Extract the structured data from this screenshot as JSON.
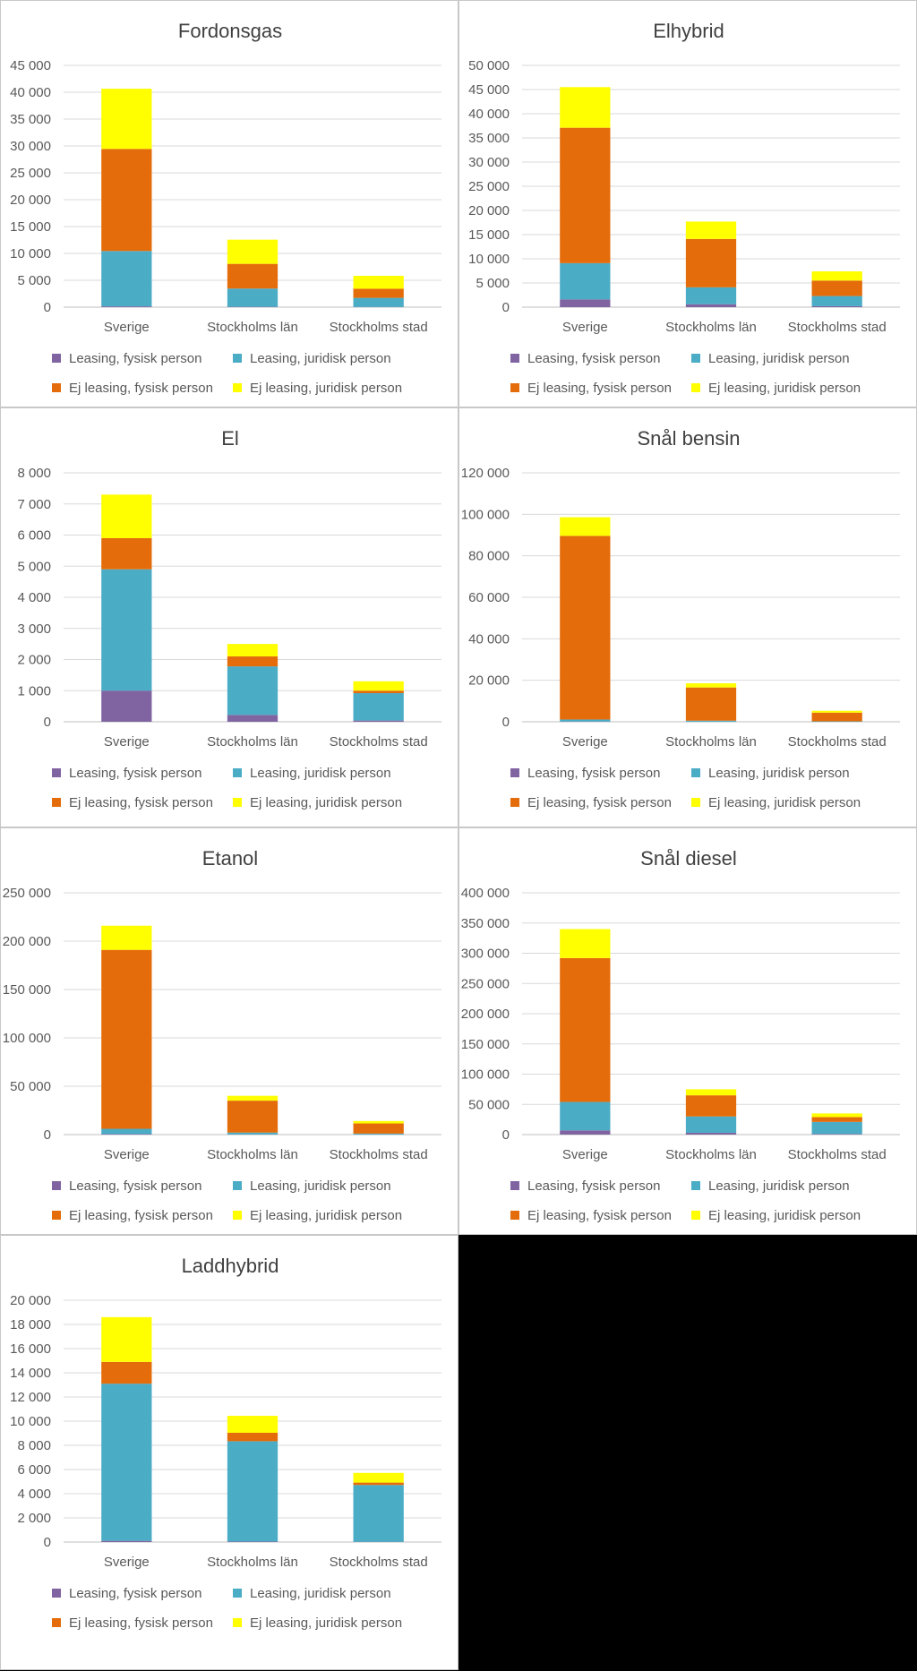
{
  "colors": {
    "Leasing, fysisk person": "#8064a2",
    "Leasing, juridisk person": "#4bacc6",
    "Ej leasing, fysisk person": "#e46c0a",
    "Ej leasing, juridisk person": "#ffff00"
  },
  "chart_data": [
    {
      "type": "bar",
      "stacked": true,
      "title": "Fordonsgas",
      "categories": [
        "Sverige",
        "Stockholms län",
        "Stockholms stad"
      ],
      "yticks": [
        "0",
        "5 000",
        "10 000",
        "15 000",
        "20 000",
        "25 000",
        "30 000",
        "35 000",
        "40 000",
        "45 000"
      ],
      "ylim": [
        0,
        45000
      ],
      "series": [
        {
          "name": "Leasing, fysisk person",
          "values": [
            150,
            60,
            30
          ]
        },
        {
          "name": "Leasing, juridisk person",
          "values": [
            10300,
            3400,
            1700
          ]
        },
        {
          "name": "Ej leasing, fysisk person",
          "values": [
            19000,
            4600,
            1700
          ]
        },
        {
          "name": "Ej leasing, juridisk person",
          "values": [
            11200,
            4500,
            2400
          ]
        }
      ],
      "grid": true,
      "legend": "bottom"
    },
    {
      "type": "bar",
      "stacked": true,
      "title": "Elhybrid",
      "categories": [
        "Sverige",
        "Stockholms län",
        "Stockholms stad"
      ],
      "yticks": [
        "0",
        "5 000",
        "10 000",
        "15 000",
        "20 000",
        "25 000",
        "30 000",
        "35 000",
        "40 000",
        "45 000",
        "50 000"
      ],
      "ylim": [
        0,
        50000
      ],
      "series": [
        {
          "name": "Leasing, fysisk person",
          "values": [
            1600,
            600,
            200
          ]
        },
        {
          "name": "Leasing, juridisk person",
          "values": [
            7500,
            3500,
            2100
          ]
        },
        {
          "name": "Ej leasing, fysisk person",
          "values": [
            28000,
            10000,
            3200
          ]
        },
        {
          "name": "Ej leasing, juridisk person",
          "values": [
            8400,
            3600,
            1900
          ]
        }
      ],
      "grid": true,
      "legend": "bottom"
    },
    {
      "type": "bar",
      "stacked": true,
      "title": "El",
      "categories": [
        "Sverige",
        "Stockholms län",
        "Stockholms stad"
      ],
      "yticks": [
        "0",
        "1 000",
        "2 000",
        "3 000",
        "4 000",
        "5 000",
        "6 000",
        "7 000",
        "8 000"
      ],
      "ylim": [
        0,
        8000
      ],
      "series": [
        {
          "name": "Leasing, fysisk person",
          "values": [
            1000,
            220,
            40
          ]
        },
        {
          "name": "Leasing, juridisk person",
          "values": [
            3900,
            1560,
            880
          ]
        },
        {
          "name": "Ej leasing, fysisk person",
          "values": [
            1000,
            320,
            80
          ]
        },
        {
          "name": "Ej leasing, juridisk person",
          "values": [
            1400,
            400,
            300
          ]
        }
      ],
      "grid": true,
      "legend": "bottom"
    },
    {
      "type": "bar",
      "stacked": true,
      "title": "Snål bensin",
      "categories": [
        "Sverige",
        "Stockholms län",
        "Stockholms stad"
      ],
      "yticks": [
        "0",
        "20 000",
        "40 000",
        "60 000",
        "80 000",
        "100 000",
        "120 000"
      ],
      "ylim": [
        0,
        120000
      ],
      "series": [
        {
          "name": "Leasing, fysisk person",
          "values": [
            100,
            40,
            10
          ]
        },
        {
          "name": "Leasing, juridisk person",
          "values": [
            1000,
            500,
            200
          ]
        },
        {
          "name": "Ej leasing, fysisk person",
          "values": [
            88500,
            16000,
            4200
          ]
        },
        {
          "name": "Ej leasing, juridisk person",
          "values": [
            9000,
            2000,
            900
          ]
        }
      ],
      "grid": true,
      "legend": "bottom"
    },
    {
      "type": "bar",
      "stacked": true,
      "title": "Etanol",
      "categories": [
        "Sverige",
        "Stockholms län",
        "Stockholms stad"
      ],
      "yticks": [
        "0",
        "50 000",
        "100 000",
        "150 000",
        "200 000",
        "250 000"
      ],
      "ylim": [
        0,
        250000
      ],
      "series": [
        {
          "name": "Leasing, fysisk person",
          "values": [
            500,
            100,
            50
          ]
        },
        {
          "name": "Leasing, juridisk person",
          "values": [
            5500,
            2000,
            1000
          ]
        },
        {
          "name": "Ej leasing, fysisk person",
          "values": [
            185000,
            33000,
            10500
          ]
        },
        {
          "name": "Ej leasing, juridisk person",
          "values": [
            25000,
            5000,
            2500
          ]
        }
      ],
      "grid": true,
      "legend": "bottom"
    },
    {
      "type": "bar",
      "stacked": true,
      "title": "Snål diesel",
      "categories": [
        "Sverige",
        "Stockholms län",
        "Stockholms stad"
      ],
      "yticks": [
        "0",
        "50 000",
        "100 000",
        "150 000",
        "200 000",
        "250 000",
        "300 000",
        "350 000",
        "400 000"
      ],
      "ylim": [
        0,
        400000
      ],
      "series": [
        {
          "name": "Leasing, fysisk person",
          "values": [
            7000,
            3000,
            1000
          ]
        },
        {
          "name": "Leasing, juridisk person",
          "values": [
            47000,
            27000,
            20000
          ]
        },
        {
          "name": "Ej leasing, fysisk person",
          "values": [
            238000,
            35000,
            8000
          ]
        },
        {
          "name": "Ej leasing, juridisk person",
          "values": [
            48000,
            10000,
            6000
          ]
        }
      ],
      "grid": true,
      "legend": "bottom"
    },
    {
      "type": "bar",
      "stacked": true,
      "title": "Laddhybrid",
      "categories": [
        "Sverige",
        "Stockholms län",
        "Stockholms stad"
      ],
      "yticks": [
        "0",
        "2 000",
        "4 000",
        "6 000",
        "8 000",
        "10 000",
        "12 000",
        "14 000",
        "16 000",
        "18 000",
        "20 000"
      ],
      "ylim": [
        0,
        20000
      ],
      "series": [
        {
          "name": "Leasing, fysisk person",
          "values": [
            100,
            40,
            20
          ]
        },
        {
          "name": "Leasing, juridisk person",
          "values": [
            13000,
            8300,
            4700
          ]
        },
        {
          "name": "Ej leasing, fysisk person",
          "values": [
            1800,
            700,
            200
          ]
        },
        {
          "name": "Ej leasing, juridisk person",
          "values": [
            3700,
            1400,
            800
          ]
        }
      ],
      "grid": true,
      "legend": "bottom"
    }
  ]
}
